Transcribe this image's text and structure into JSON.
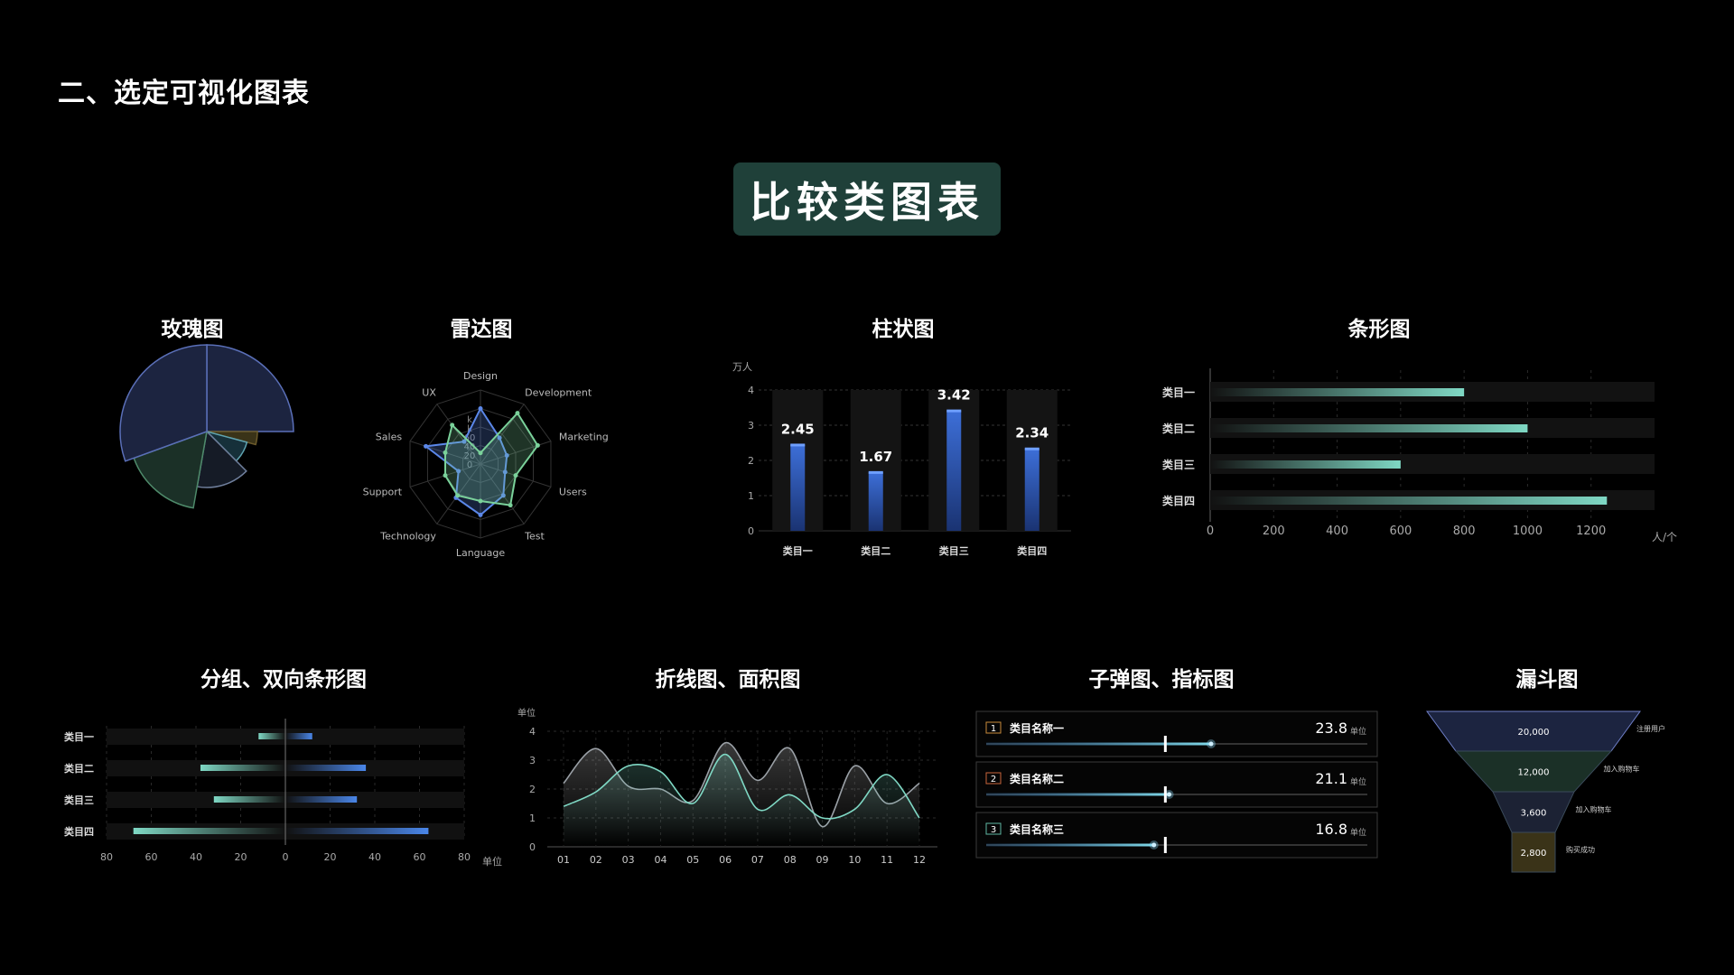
{
  "page": {
    "section_title": "二、选定可视化图表",
    "badge": "比较类图表"
  },
  "titles": {
    "rose": "玫瑰图",
    "radar": "雷达图",
    "column": "柱状图",
    "bar": "条形图",
    "bidir": "分组、双向条形图",
    "line": "折线图、面积图",
    "bullet": "子弹图、指标图",
    "funnel": "漏斗图"
  },
  "chart_data": [
    {
      "id": "rose",
      "type": "pie",
      "title": "玫瑰图",
      "slices": [
        {
          "angle": 90,
          "radius": 0.96,
          "color": "#1c2440",
          "stroke": "#5a6fb8"
        },
        {
          "angle": 15,
          "radius": 0.56,
          "color": "#3a3318",
          "stroke": "#6b5a2a"
        },
        {
          "angle": 30,
          "radius": 0.46,
          "color": "#16303a",
          "stroke": "#5fa3b0"
        },
        {
          "angle": 55,
          "radius": 0.62,
          "color": "#151b26",
          "stroke": "#6f7f9c"
        },
        {
          "angle": 60,
          "radius": 0.86,
          "color": "#1b3027",
          "stroke": "#4e8a6a"
        },
        {
          "angle": 110,
          "radius": 0.96,
          "color": "#1c2440",
          "stroke": "#5a6fb8"
        }
      ]
    },
    {
      "id": "radar",
      "type": "radar",
      "title": "雷达图",
      "axes": [
        "Design",
        "Development",
        "Marketing",
        "Users",
        "Test",
        "Language",
        "Technology",
        "Support",
        "Sales",
        "UX"
      ],
      "ticks": [
        "0",
        "20",
        "40",
        "60",
        "k",
        "k"
      ],
      "max": 80,
      "series": [
        {
          "color": "#5b87e8",
          "values": [
            60,
            35,
            30,
            28,
            42,
            55,
            45,
            25,
            62,
            30
          ]
        },
        {
          "color": "#7ad19a",
          "values": [
            12,
            68,
            65,
            40,
            55,
            40,
            42,
            40,
            40,
            52
          ]
        }
      ]
    },
    {
      "id": "column",
      "type": "bar",
      "title": "柱状图",
      "unit": "万人",
      "categories": [
        "类目一",
        "类目二",
        "类目三",
        "类目四"
      ],
      "values": [
        2.45,
        1.67,
        3.42,
        2.34
      ],
      "labels": [
        "2.45",
        "1.67",
        "3.42",
        "2.34"
      ],
      "ylim": [
        0,
        4
      ],
      "yticks": [
        0,
        1,
        2,
        3,
        4
      ]
    },
    {
      "id": "hbar",
      "type": "bar",
      "title": "条形图",
      "unit": "人/个",
      "categories": [
        "类目一",
        "类目二",
        "类目三",
        "类目四"
      ],
      "values": [
        800,
        1000,
        600,
        1250
      ],
      "xlim": [
        0,
        1400
      ],
      "xticks": [
        0,
        200,
        400,
        600,
        800,
        1000,
        1200
      ]
    },
    {
      "id": "bidir",
      "type": "bar",
      "title": "分组、双向条形图",
      "unit": "单位",
      "categories": [
        "类目一",
        "类目二",
        "类目三",
        "类目四"
      ],
      "left": [
        12,
        38,
        32,
        68
      ],
      "right": [
        12,
        36,
        32,
        64
      ],
      "xticks": [
        "80",
        "60",
        "40",
        "20",
        "0",
        "20",
        "40",
        "60",
        "80"
      ]
    },
    {
      "id": "line",
      "type": "area",
      "title": "折线图、面积图",
      "unit": "单位",
      "x": [
        "01",
        "02",
        "03",
        "04",
        "05",
        "06",
        "07",
        "08",
        "09",
        "10",
        "11",
        "12"
      ],
      "ylim": [
        0,
        4
      ],
      "yticks": [
        0,
        1,
        2,
        3,
        4
      ],
      "series": [
        {
          "color": "#9aa0a6",
          "values": [
            2.2,
            3.4,
            2.1,
            2.0,
            1.6,
            3.6,
            2.3,
            3.4,
            0.7,
            2.8,
            1.5,
            2.2
          ]
        },
        {
          "color": "#7fd8c4",
          "values": [
            1.4,
            1.9,
            2.8,
            2.6,
            1.5,
            3.2,
            1.3,
            1.8,
            1.0,
            1.3,
            2.5,
            1.0
          ]
        }
      ]
    },
    {
      "id": "bullet",
      "type": "bar",
      "title": "子弹图、指标图",
      "unit": "单位",
      "items": [
        {
          "rank": "1",
          "name": "类目名称一",
          "value": "23.8",
          "fill": 0.59,
          "target": 0.47,
          "rank_color": "#c98a3a"
        },
        {
          "rank": "2",
          "name": "类目名称二",
          "value": "21.1",
          "fill": 0.48,
          "target": 0.47,
          "rank_color": "#c9653a"
        },
        {
          "rank": "3",
          "name": "类目名称三",
          "value": "16.8",
          "fill": 0.44,
          "target": 0.47,
          "rank_color": "#5fb8a3"
        }
      ]
    },
    {
      "id": "funnel",
      "type": "bar",
      "title": "漏斗图",
      "stages": [
        {
          "value": "20,000",
          "label": "注册用户",
          "color": "#1c2440"
        },
        {
          "value": "12,000",
          "label": "加入购物车",
          "color": "#1b3027"
        },
        {
          "value": "3,600",
          "label": "加入购物车",
          "color": "#1c2234"
        },
        {
          "value": "2,800",
          "label": "购买成功",
          "color": "#3a3318"
        }
      ]
    }
  ]
}
